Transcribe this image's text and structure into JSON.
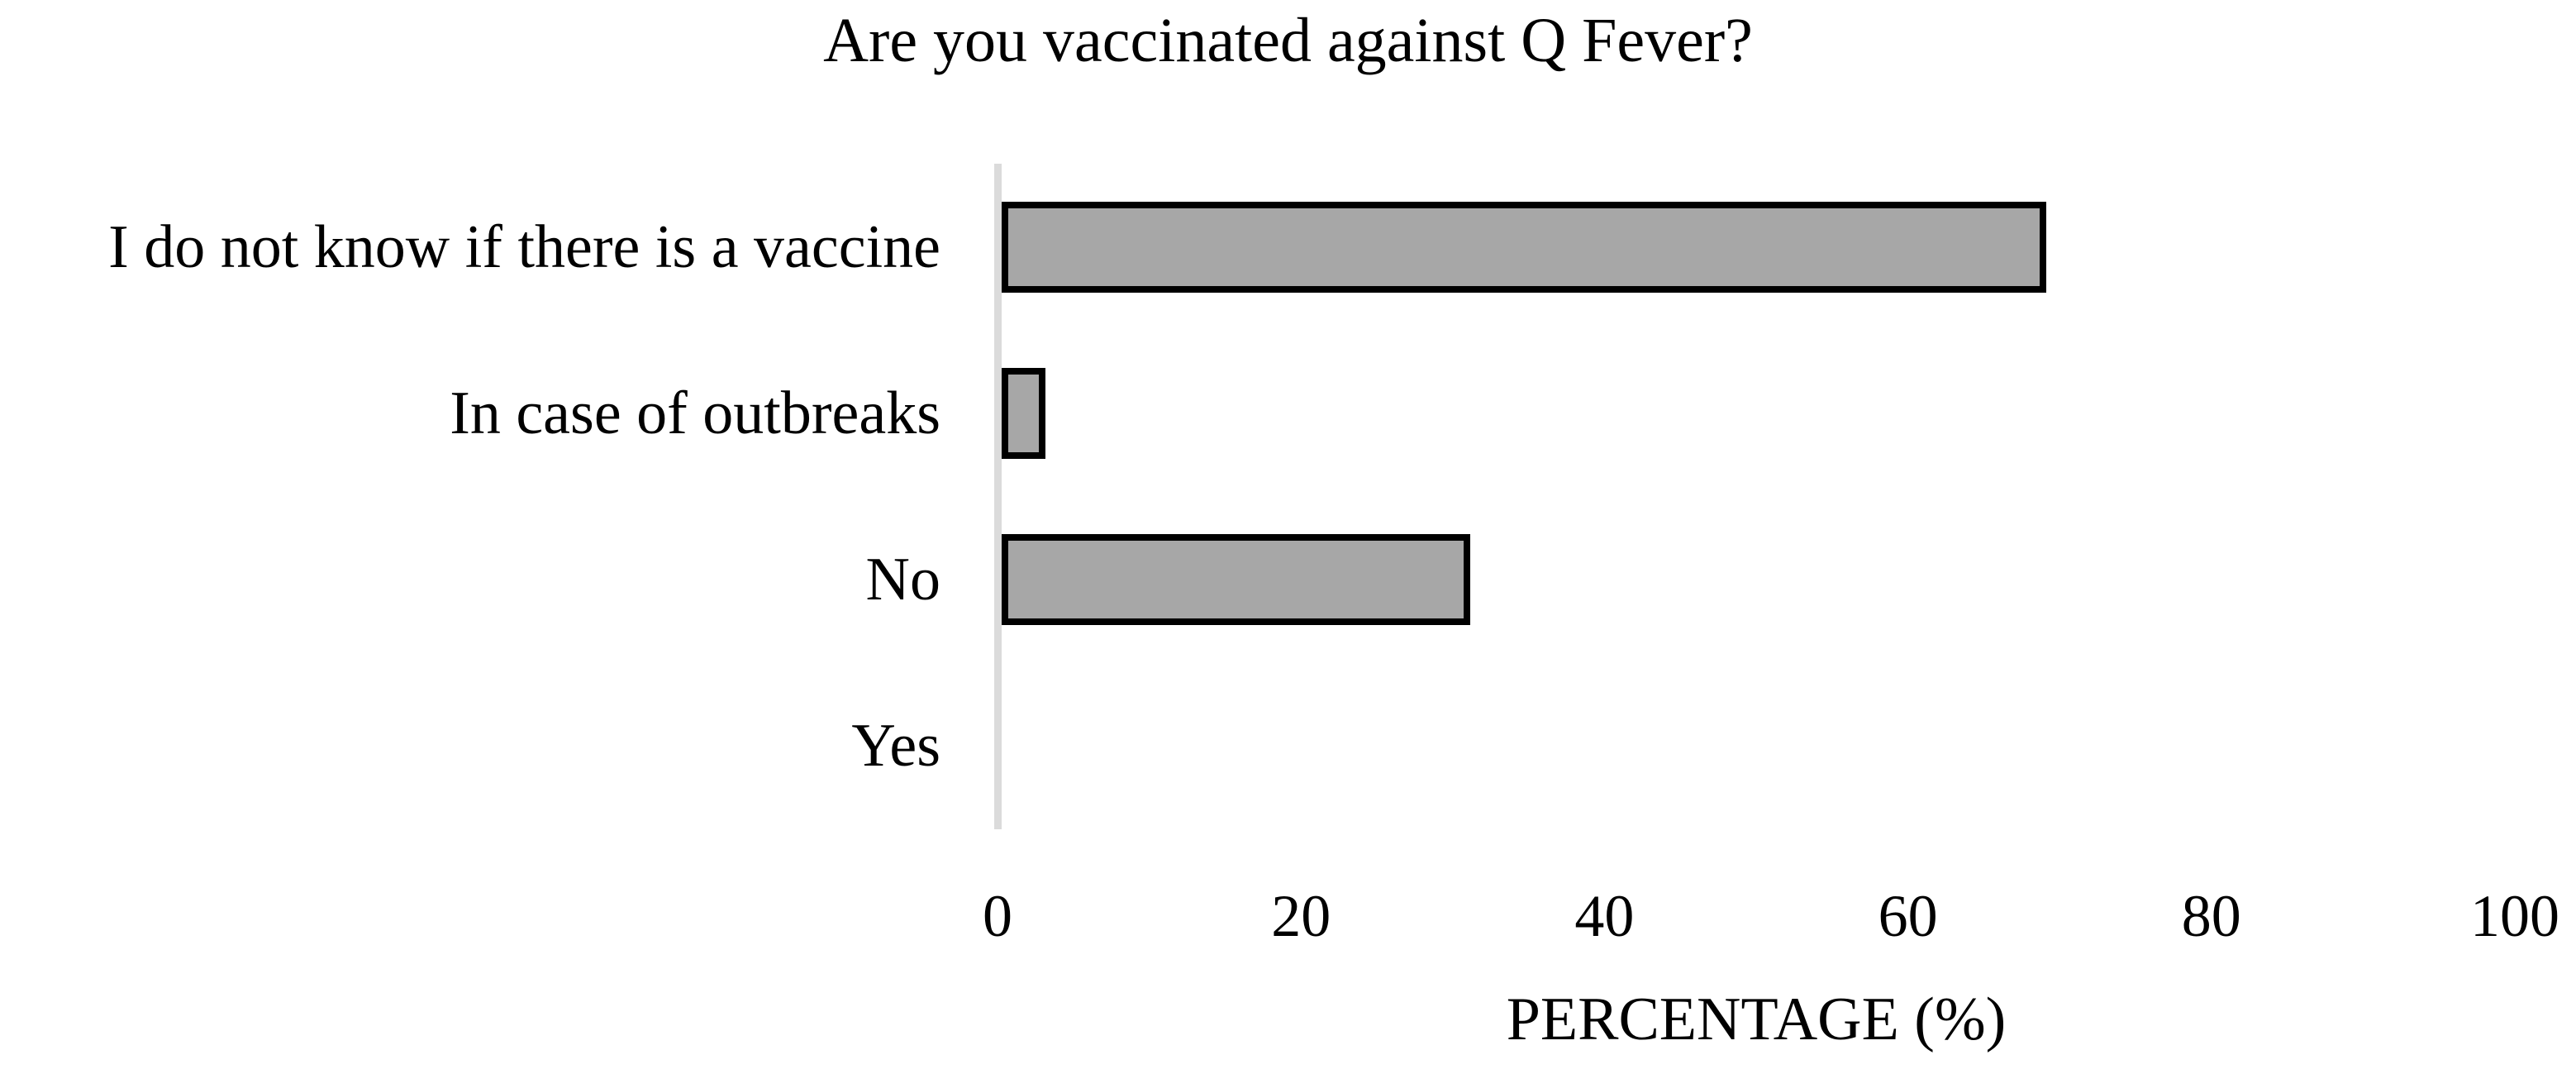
{
  "chart_data": {
    "type": "bar",
    "orientation": "horizontal",
    "title": "Are you vaccinated against Q Fever?",
    "categories": [
      "I do not know if there is a vaccine",
      "In case of outbreaks",
      "No",
      "Yes"
    ],
    "values": [
      68,
      2,
      30,
      0
    ],
    "xlabel": "PERCENTAGE (%)",
    "xlim": [
      0,
      100
    ],
    "xticks": [
      0,
      20,
      40,
      60,
      80,
      100
    ],
    "grid": false,
    "legend": false,
    "colors": {
      "bar_fill": "#A7A7A7",
      "bar_border": "#000000",
      "axis_line": "#DBDBDB",
      "text": "#000000",
      "background": "#FFFFFF"
    }
  }
}
